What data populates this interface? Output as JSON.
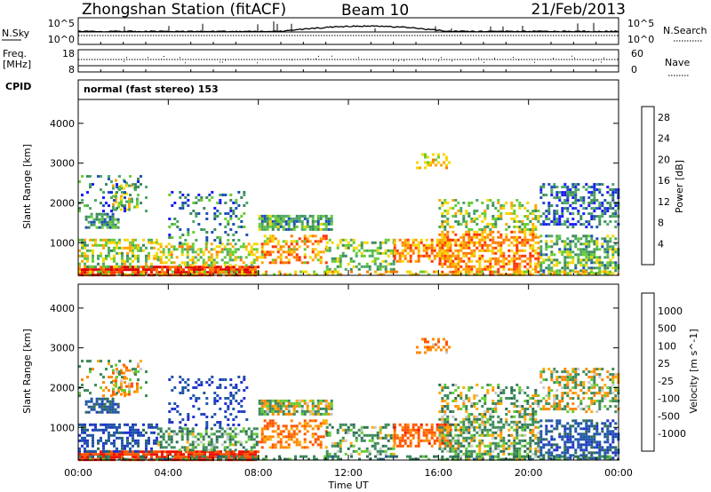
{
  "title": "Zhongshan Station (fitACF)",
  "beam_label": "Beam 10",
  "date_label": "21/Feb/2013",
  "cpid": {
    "label": "CPID",
    "value": "normal (fast stereo) 153"
  },
  "top_panel": {
    "left_label": "N.Sky",
    "left_ticks": [
      "10^5",
      "10^0"
    ],
    "right_label": "N.Search",
    "right_ticks": [
      "10^5",
      "10^0"
    ]
  },
  "freq_panel": {
    "left_label_1": "Freq.",
    "left_label_2": "[MHz]",
    "left_ticks": [
      "18",
      "8"
    ],
    "right_label": "Nave",
    "right_ticks": [
      "60",
      "0"
    ]
  },
  "colors": {
    "power_scale": [
      "#1a1aff",
      "#1f4fb5",
      "#3c8a5a",
      "#4ca666",
      "#66cc33",
      "#f5d800",
      "#ffa500",
      "#ff7700",
      "#ff3300",
      "#dd0000"
    ],
    "velocity_scale": [
      "#2233cc",
      "#1f55aa",
      "#2f6d55",
      "#3c8a5a",
      "#66cc33",
      "#c8c8c8",
      "#ffaa00",
      "#ff8800",
      "#ff5500",
      "#ee1100"
    ]
  },
  "chart_data": [
    {
      "type": "heatmap",
      "name": "power",
      "ylabel": "Slant Range [km]",
      "yticks": [
        1000,
        2000,
        3000,
        4000
      ],
      "ylim": [
        180,
        4600
      ],
      "xlim": [
        0,
        24
      ],
      "colorbar": {
        "label": "Power [dB]",
        "ticks": [
          4,
          8,
          12,
          16,
          20,
          24,
          28
        ],
        "range": [
          0,
          30
        ]
      }
    },
    {
      "type": "heatmap",
      "name": "velocity",
      "ylabel": "Slant Range [km]",
      "xlabel": "Time UT",
      "yticks": [
        1000,
        2000,
        3000,
        4000
      ],
      "ylim": [
        180,
        4600
      ],
      "xlim": [
        0,
        24
      ],
      "xticks": [
        0,
        4,
        8,
        12,
        16,
        20,
        24
      ],
      "xtick_labels": [
        "00:00",
        "04:00",
        "08:00",
        "12:00",
        "16:00",
        "20:00",
        "00:00"
      ],
      "colorbar": {
        "label": "Velocity [m s^-1]",
        "ticks": [
          "1000",
          "500",
          "100",
          "25",
          "-25",
          "-100",
          "-500",
          "-1000"
        ]
      }
    }
  ],
  "scatter_bands": [
    {
      "t0": 0.0,
      "t1": 8.0,
      "r0": 200,
      "r1": 420,
      "power": 27,
      "vel": -600,
      "dens": 0.85
    },
    {
      "t0": 0.0,
      "t1": 3.5,
      "r0": 420,
      "r1": 1100,
      "power": 14,
      "vel": 700,
      "dens": 0.55
    },
    {
      "t0": 3.5,
      "t1": 8.0,
      "r0": 420,
      "r1": 1000,
      "power": 16,
      "vel": 200,
      "dens": 0.45
    },
    {
      "t0": 0.3,
      "t1": 1.8,
      "r0": 1350,
      "r1": 1750,
      "power": 9,
      "vel": 600,
      "dens": 0.7
    },
    {
      "t0": 1.5,
      "t1": 2.6,
      "r0": 1850,
      "r1": 2600,
      "power": 15,
      "vel": -150,
      "dens": 0.35
    },
    {
      "t0": 0.0,
      "t1": 3.0,
      "r0": 1800,
      "r1": 2700,
      "power": 7,
      "vel": 30,
      "dens": 0.18
    },
    {
      "t0": 4.0,
      "t1": 7.5,
      "r0": 1000,
      "r1": 2300,
      "power": 8,
      "vel": 800,
      "dens": 0.22
    },
    {
      "t0": 8.0,
      "t1": 11.3,
      "r0": 1350,
      "r1": 1700,
      "power": 10,
      "vel": 20,
      "dens": 0.75
    },
    {
      "t0": 8.0,
      "t1": 11.0,
      "r0": 500,
      "r1": 1200,
      "power": 20,
      "vel": -300,
      "dens": 0.5
    },
    {
      "t0": 11.0,
      "t1": 14.0,
      "r0": 300,
      "r1": 1100,
      "power": 12,
      "vel": 150,
      "dens": 0.4
    },
    {
      "t0": 14.0,
      "t1": 16.5,
      "r0": 500,
      "r1": 1100,
      "power": 21,
      "vel": -400,
      "dens": 0.55
    },
    {
      "t0": 16.0,
      "t1": 20.5,
      "r0": 200,
      "r1": 1300,
      "power": 21,
      "vel": 120,
      "dens": 0.6
    },
    {
      "t0": 16.0,
      "t1": 20.5,
      "r0": 1300,
      "r1": 2100,
      "power": 14,
      "vel": 110,
      "dens": 0.38
    },
    {
      "t0": 20.5,
      "t1": 24.0,
      "r0": 250,
      "r1": 1200,
      "power": 11,
      "vel": 650,
      "dens": 0.55
    },
    {
      "t0": 20.5,
      "t1": 24.0,
      "r0": 1400,
      "r1": 2500,
      "power": 6,
      "vel": 20,
      "dens": 0.45
    },
    {
      "t0": 15.0,
      "t1": 16.5,
      "r0": 2850,
      "r1": 3250,
      "power": 18,
      "vel": -200,
      "dens": 0.25
    },
    {
      "t0": 0.0,
      "t1": 24.0,
      "r0": 180,
      "r1": 300,
      "power": 18,
      "vel": 300,
      "dens": 0.4
    }
  ]
}
